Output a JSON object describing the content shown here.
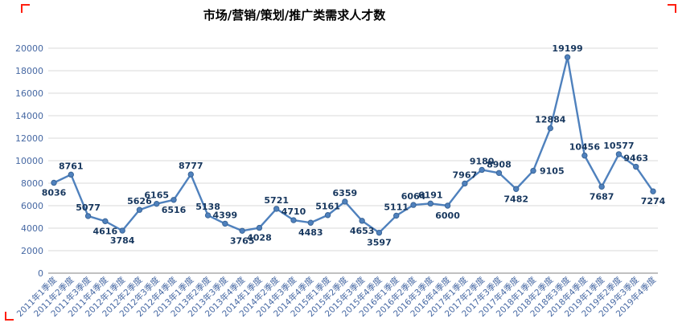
{
  "chart_data": {
    "type": "line",
    "title": "市场/营销/策划/推广类需求人才数",
    "categories": [
      "2011年1季度",
      "2011年2季度",
      "2011年3季度",
      "2011年4季度",
      "2012年1季度",
      "2012年2季度",
      "2012年3季度",
      "2012年4季度",
      "2013年1季度",
      "2013年2季度",
      "2013年3季度",
      "2013年4季度",
      "2014年1季度",
      "2014年2季度",
      "2014年3季度",
      "2014年4季度",
      "2015年1季度",
      "2015年2季度",
      "2015年3季度",
      "2015年4季度",
      "2016年1季度",
      "2016年2季度",
      "2016年3季度",
      "2016年4季度",
      "2017年1季度",
      "2017年2季度",
      "2017年3季度",
      "2017年4季度",
      "2018年1季度",
      "2018年2季度",
      "2018年3季度",
      "2018年4季度",
      "2019年1季度",
      "2019年2季度",
      "2019年3季度",
      "2019年4季度"
    ],
    "values": [
      8036,
      8761,
      5077,
      4616,
      3784,
      5626,
      6165,
      6516,
      8777,
      5138,
      4399,
      3765,
      4028,
      5721,
      4710,
      4483,
      5161,
      6359,
      4653,
      3597,
      5111,
      6064,
      6191,
      6000,
      7967,
      9180,
      8908,
      7482,
      9105,
      12884,
      19199,
      10456,
      7687,
      10577,
      9463,
      7274
    ],
    "label_sides": [
      "below",
      "above",
      "above",
      "below",
      "below",
      "above",
      "above",
      "below",
      "above",
      "above",
      "above",
      "below",
      "below",
      "above",
      "above",
      "below",
      "above",
      "above",
      "below",
      "below",
      "above",
      "above",
      "above",
      "below",
      "above",
      "above",
      "above",
      "below",
      "right",
      "above",
      "above",
      "above",
      "below",
      "above",
      "above",
      "below"
    ],
    "xlabel": "",
    "ylabel": "",
    "ylim": [
      0,
      20000
    ],
    "ytick_step": 2000,
    "grid": true,
    "legend": "none",
    "colors": {
      "line": "#4F81BD",
      "marker": "#4F81BD",
      "marker_stroke": "#3A6597",
      "data_label": "#17375E",
      "axis_label": "#4668A3",
      "gridline": "#D9D9D9",
      "axis_line": "#9B9B9B",
      "title": "#000000",
      "crop_mark": "#FF1F0F"
    }
  }
}
